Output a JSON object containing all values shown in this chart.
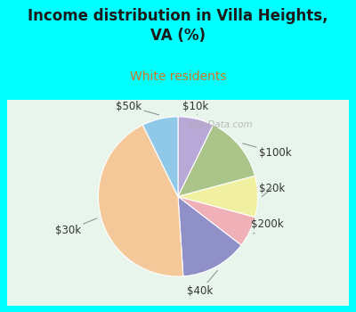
{
  "title": "Income distribution in Villa Heights,\nVA (%)",
  "subtitle": "White residents",
  "title_color": "#1a1a1a",
  "subtitle_color": "#cc7722",
  "background_color": "#00ffff",
  "chart_bg_color": "#e8f5e8",
  "slice_labels": [
    "$10k",
    "$100k",
    "$20k",
    "$200k",
    "$40k",
    "$30k",
    "$50k"
  ],
  "values": [
    7,
    13,
    8,
    6,
    13,
    42,
    7
  ],
  "colors": [
    "#b8a8d8",
    "#aac48a",
    "#f0f0a0",
    "#f0b0b8",
    "#9090c8",
    "#f5c89a",
    "#90c8e8"
  ],
  "startangle": 90,
  "label_fontsize": 8.5,
  "watermark": "city-Data.com"
}
